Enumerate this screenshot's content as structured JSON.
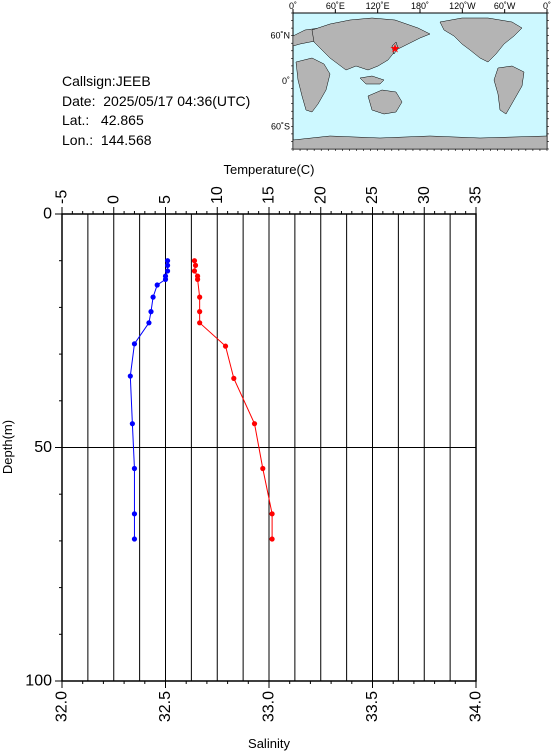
{
  "station": {
    "callsign": "Callsign:JEEB",
    "date": "Date:  2025/05/17 04:36(UTC)",
    "lat": "Lat.:   42.865",
    "lon": "Lon.:  144.568"
  },
  "map": {
    "lon_labels": [
      "0˚",
      "60˚E",
      "120˚E",
      "180˚",
      "120˚W",
      "60˚W",
      "0˚"
    ],
    "lat_labels": [
      "60˚N",
      "0˚",
      "60˚S"
    ],
    "ocean_color": "#cdf8ff",
    "land_color": "#b4b4b4",
    "marker_color": "#ff0000",
    "marker_icon": "star-icon",
    "marker_lon": 144.568,
    "marker_lat": 42.865
  },
  "chart_data": {
    "type": "scatter",
    "title": "",
    "ylabel": "Depth(m)",
    "ylim": [
      100,
      0
    ],
    "yticks": [
      "0",
      "50",
      "100"
    ],
    "x_top": {
      "label": "Temperature(C)",
      "lim": [
        -5,
        35
      ],
      "ticks": [
        "-5",
        "0",
        "5",
        "10",
        "15",
        "20",
        "25",
        "30",
        "35"
      ]
    },
    "x_bottom": {
      "label": "Salinity",
      "lim": [
        32.0,
        34.0
      ],
      "ticks": [
        "32.0",
        "32.5",
        "33.0",
        "33.5",
        "34.0"
      ]
    },
    "grid": true,
    "series": [
      {
        "axis": "temperature",
        "color": "#ff0000",
        "points": [
          [
            7.8,
            10.0
          ],
          [
            7.9,
            11.0
          ],
          [
            7.8,
            12.2
          ],
          [
            8.1,
            13.3
          ],
          [
            8.1,
            14.0
          ],
          [
            8.3,
            17.8
          ],
          [
            8.3,
            20.9
          ],
          [
            8.3,
            23.3
          ],
          [
            10.8,
            28.3
          ],
          [
            11.6,
            35.2
          ],
          [
            13.6,
            44.9
          ],
          [
            14.4,
            54.5
          ],
          [
            15.3,
            64.2
          ],
          [
            15.3,
            69.6
          ]
        ]
      },
      {
        "axis": "salinity",
        "color": "#0000ff",
        "points": [
          [
            32.51,
            10.0
          ],
          [
            32.51,
            11.0
          ],
          [
            32.51,
            12.2
          ],
          [
            32.5,
            13.3
          ],
          [
            32.5,
            14.0
          ],
          [
            32.46,
            15.2
          ],
          [
            32.44,
            17.8
          ],
          [
            32.43,
            20.9
          ],
          [
            32.42,
            23.3
          ],
          [
            32.35,
            27.8
          ],
          [
            32.33,
            34.7
          ],
          [
            32.34,
            44.9
          ],
          [
            32.35,
            54.5
          ],
          [
            32.35,
            64.2
          ],
          [
            32.35,
            69.6
          ]
        ]
      }
    ]
  }
}
